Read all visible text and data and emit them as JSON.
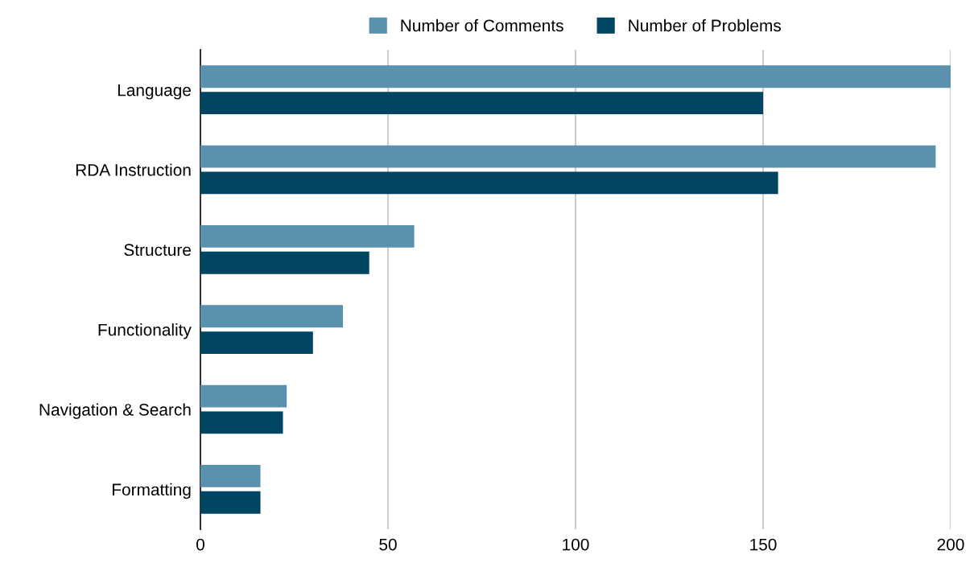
{
  "chart_data": {
    "type": "bar",
    "orientation": "horizontal",
    "categories": [
      "Language",
      "RDA Instruction",
      "Structure",
      "Functionality",
      "Navigation & Search",
      "Formatting"
    ],
    "series": [
      {
        "name": "Number of Comments",
        "color": "#5a91ae",
        "values": [
          200,
          196,
          57,
          38,
          23,
          16
        ]
      },
      {
        "name": "Number of Problems",
        "color": "#004561",
        "values": [
          150,
          154,
          45,
          30,
          22,
          16
        ]
      }
    ],
    "xlim": [
      0,
      200
    ],
    "xticks": [
      0,
      50,
      100,
      150,
      200
    ],
    "grid": "x",
    "legend": "top"
  }
}
